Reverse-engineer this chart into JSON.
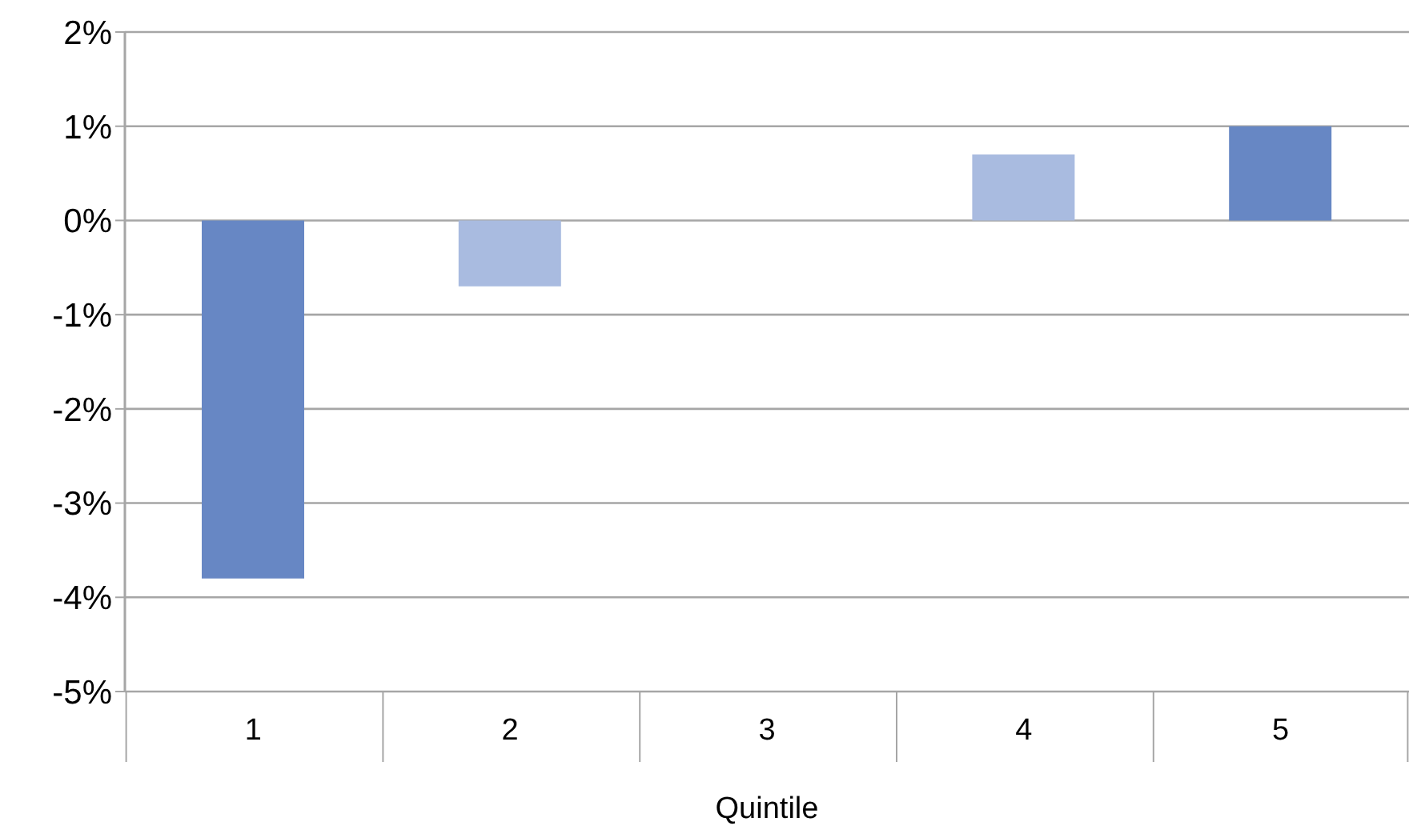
{
  "chart_data": {
    "type": "bar",
    "xlabel": "Quintile",
    "categories": [
      "1",
      "2",
      "3",
      "4",
      "5"
    ],
    "values": [
      -3.8,
      -0.7,
      0,
      0.7,
      1.0
    ],
    "colors": [
      "#6787c4",
      "#a9bbe0",
      "#6787c4",
      "#a9bbe0",
      "#6787c4"
    ],
    "ylim": [
      -5,
      2
    ],
    "yticks": [
      {
        "value": -5,
        "label": "-5%"
      },
      {
        "value": -4,
        "label": "-4%"
      },
      {
        "value": -3,
        "label": "-3%"
      },
      {
        "value": -2,
        "label": "-2%"
      },
      {
        "value": -1,
        "label": "-1%"
      },
      {
        "value": 0,
        "label": "0%"
      },
      {
        "value": 1,
        "label": "1%"
      },
      {
        "value": 2,
        "label": "2%"
      }
    ],
    "grid": "y",
    "legend": false
  }
}
